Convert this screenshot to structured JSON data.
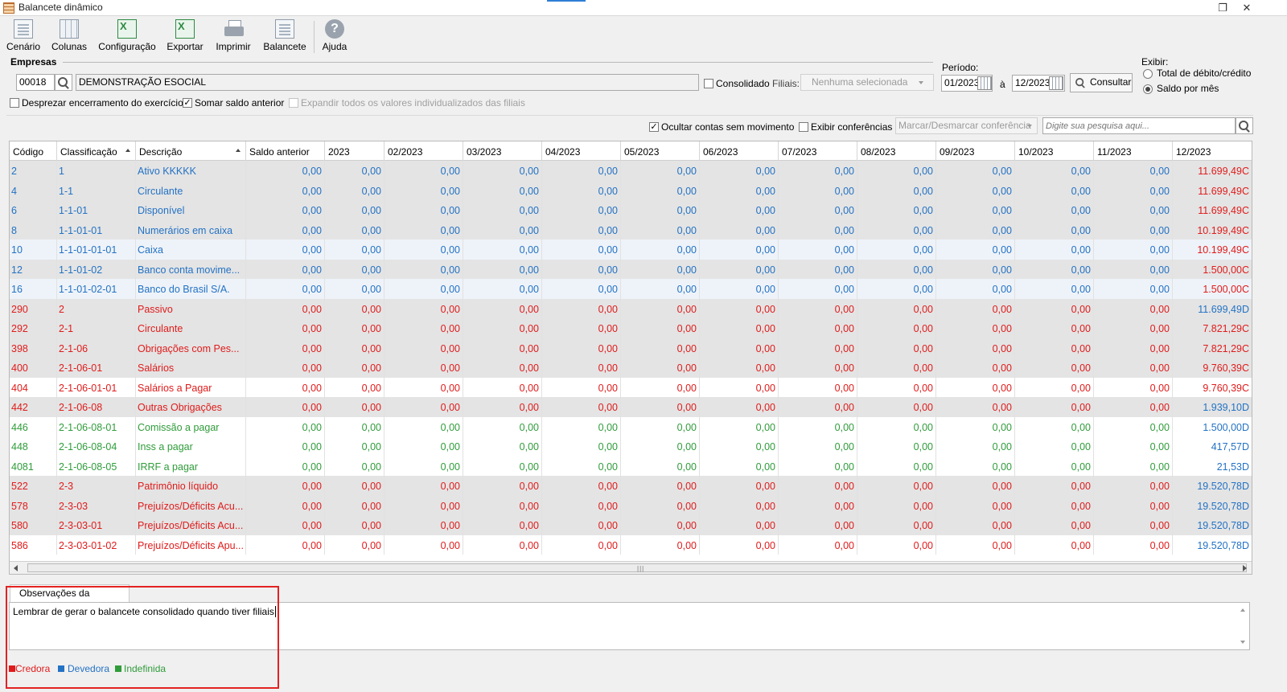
{
  "window": {
    "title": "Balancete dinâmico"
  },
  "toolbar": {
    "cenario": "Cenário",
    "colunas": "Colunas",
    "configuracao": "Configuração",
    "exportar": "Exportar",
    "imprimir": "Imprimir",
    "balancete": "Balancete",
    "ajuda": "Ajuda"
  },
  "empresas": {
    "label": "Empresas",
    "code": "00018",
    "name": "DEMONSTRAÇÃO ESOCIAL",
    "consolidado_label": "Consolidado",
    "filiais_label": "Filiais:",
    "filiais_value": "Nenhuma selecionada"
  },
  "options": {
    "desprezar": "Desprezar encerramento do exercício",
    "somar": "Somar saldo anterior",
    "expandir": "Expandir todos os valores individualizados das filiais",
    "somar_checked": true
  },
  "periodo": {
    "label": "Período:",
    "from": "01/2023",
    "sep": "à",
    "to": "12/2023",
    "consultar": "Consultar"
  },
  "exibir": {
    "label": "Exibir:",
    "option1": "Total de débito/crédito",
    "option2": "Saldo por mês",
    "selected": "Saldo por mês"
  },
  "filterbar": {
    "ocultar": "Ocultar contas sem movimento",
    "ocultar_checked": true,
    "exibir_conf": "Exibir conferências",
    "marcar": "Marcar/Desmarcar conferência",
    "search_placeholder": "Digite sua pesquisa aqui..."
  },
  "grid": {
    "columns": [
      "Código",
      "Classificação",
      "Descrição",
      "Saldo anterior",
      "2023",
      "02/2023",
      "03/2023",
      "04/2023",
      "05/2023",
      "06/2023",
      "07/2023",
      "08/2023",
      "09/2023",
      "10/2023",
      "11/2023",
      "12/2023"
    ],
    "zero": "0,00",
    "rows": [
      {
        "code": "2",
        "class": "1",
        "desc": "Ativo KKKKK",
        "last": "11.699,49C",
        "color": "dev",
        "lastcolor": "cred",
        "bg": "#e4e4e4"
      },
      {
        "code": "4",
        "class": "1-1",
        "desc": "Circulante",
        "last": "11.699,49C",
        "color": "dev",
        "lastcolor": "cred",
        "bg": "#e4e4e4"
      },
      {
        "code": "6",
        "class": "1-1-01",
        "desc": "Disponível",
        "last": "11.699,49C",
        "color": "dev",
        "lastcolor": "cred",
        "bg": "#e4e4e4"
      },
      {
        "code": "8",
        "class": "1-1-01-01",
        "desc": "Numerários em caixa",
        "last": "10.199,49C",
        "color": "dev",
        "lastcolor": "cred",
        "bg": "#e4e4e4"
      },
      {
        "code": "10",
        "class": "1-1-01-01-01",
        "desc": "Caixa",
        "last": "10.199,49C",
        "color": "dev",
        "lastcolor": "cred",
        "bg": "#eef3f9"
      },
      {
        "code": "12",
        "class": "1-1-01-02",
        "desc": "Banco conta movime...",
        "last": "1.500,00C",
        "color": "dev",
        "lastcolor": "cred",
        "bg": "#e4e4e4"
      },
      {
        "code": "16",
        "class": "1-1-01-02-01",
        "desc": "Banco do Brasil S/A.",
        "last": "1.500,00C",
        "color": "dev",
        "lastcolor": "cred",
        "bg": "#eef3f9"
      },
      {
        "code": "290",
        "class": "2",
        "desc": "Passivo",
        "last": "11.699,49D",
        "color": "cred",
        "lastcolor": "dev",
        "bg": "#e4e4e4"
      },
      {
        "code": "292",
        "class": "2-1",
        "desc": "Circulante",
        "last": "7.821,29C",
        "color": "cred",
        "lastcolor": "cred",
        "bg": "#e4e4e4"
      },
      {
        "code": "398",
        "class": "2-1-06",
        "desc": "Obrigações com Pes...",
        "last": "7.821,29C",
        "color": "cred",
        "lastcolor": "cred",
        "bg": "#e4e4e4"
      },
      {
        "code": "400",
        "class": "2-1-06-01",
        "desc": "Salários",
        "last": "9.760,39C",
        "color": "cred",
        "lastcolor": "cred",
        "bg": "#e4e4e4"
      },
      {
        "code": "404",
        "class": "2-1-06-01-01",
        "desc": "Salários a Pagar",
        "last": "9.760,39C",
        "color": "cred",
        "lastcolor": "cred",
        "bg": "#ffffff"
      },
      {
        "code": "442",
        "class": "2-1-06-08",
        "desc": "Outras Obrigações",
        "last": "1.939,10D",
        "color": "cred",
        "lastcolor": "dev",
        "bg": "#e4e4e4"
      },
      {
        "code": "446",
        "class": "2-1-06-08-01",
        "desc": "Comissão a pagar",
        "last": "1.500,00D",
        "color": "ind",
        "lastcolor": "dev",
        "bg": "#ffffff"
      },
      {
        "code": "448",
        "class": "2-1-06-08-04",
        "desc": "Inss a pagar",
        "last": "417,57D",
        "color": "ind",
        "lastcolor": "dev",
        "bg": "#ffffff"
      },
      {
        "code": "4081",
        "class": "2-1-06-08-05",
        "desc": "IRRF a pagar",
        "last": "21,53D",
        "color": "ind",
        "lastcolor": "dev",
        "bg": "#ffffff"
      },
      {
        "code": "522",
        "class": "2-3",
        "desc": "Patrimônio líquido",
        "last": "19.520,78D",
        "color": "cred",
        "lastcolor": "dev",
        "bg": "#e4e4e4"
      },
      {
        "code": "578",
        "class": "2-3-03",
        "desc": "Prejuízos/Déficits Acu...",
        "last": "19.520,78D",
        "color": "cred",
        "lastcolor": "dev",
        "bg": "#e4e4e4"
      },
      {
        "code": "580",
        "class": "2-3-03-01",
        "desc": "Prejuízos/Déficits Acu...",
        "last": "19.520,78D",
        "color": "cred",
        "lastcolor": "dev",
        "bg": "#e4e4e4"
      },
      {
        "code": "586",
        "class": "2-3-03-01-02",
        "desc": "Prejuízos/Déficits Apu...",
        "last": "19.520,78D",
        "color": "cred",
        "lastcolor": "dev",
        "bg": "#ffffff"
      }
    ]
  },
  "notes": {
    "tab": "Observações da empresa",
    "text": "Lembrar de gerar o balancete consolidado quando tiver filiais"
  },
  "legend": [
    {
      "label": "Credora",
      "color": "#e01b1b"
    },
    {
      "label": "Devedora",
      "color": "#2372c4"
    },
    {
      "label": "Indefinida",
      "color": "#2f9c3a"
    }
  ],
  "colors": {
    "credora": "#e01b1b",
    "devedora": "#2372c4",
    "indefinida": "#2f9c3a",
    "annotation": "#e32222"
  }
}
